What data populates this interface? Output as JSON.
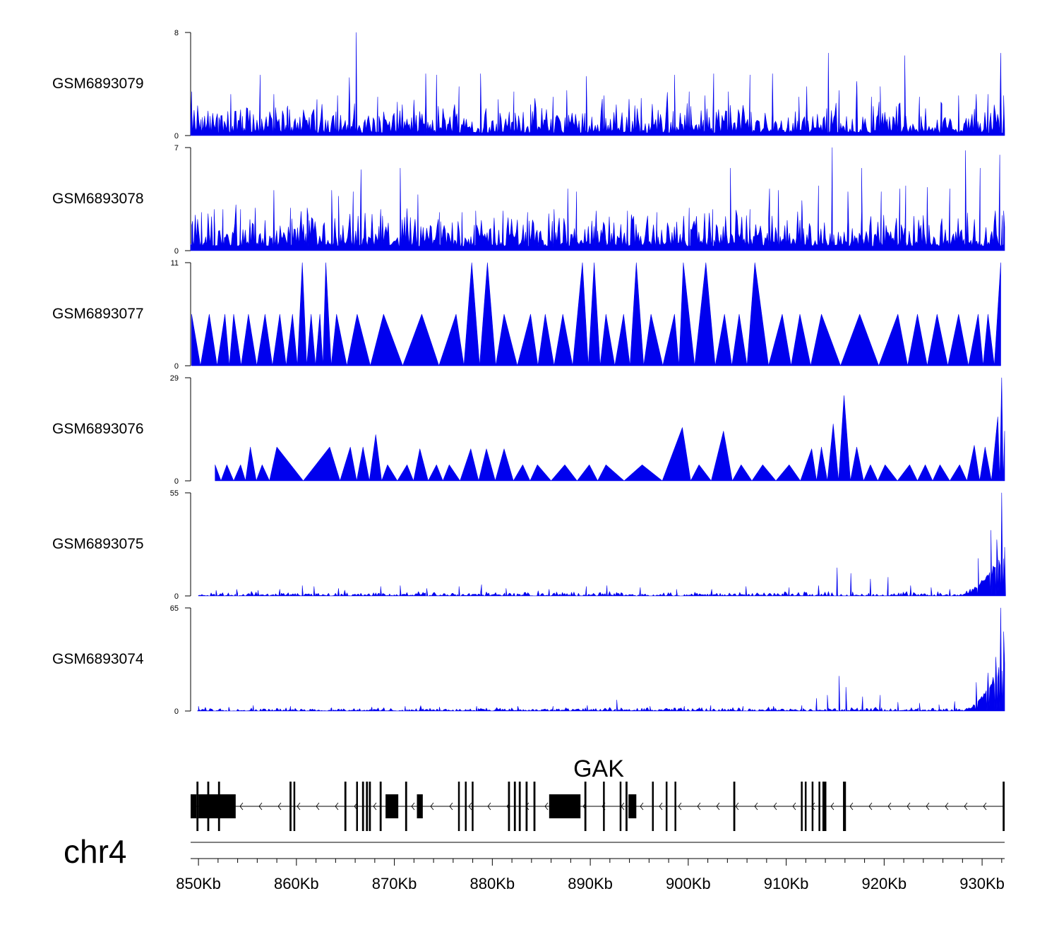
{
  "chart_data": {
    "type": "area",
    "title": "",
    "chromosome": "chr4",
    "xlabel": "",
    "xlim_kb": [
      849.2,
      932.3
    ],
    "x_ticks_kb": [
      850,
      860,
      870,
      880,
      890,
      900,
      910,
      920,
      930
    ],
    "x_tick_labels": [
      "850Kb",
      "860Kb",
      "870Kb",
      "880Kb",
      "890Kb",
      "900Kb",
      "910Kb",
      "920Kb",
      "930Kb"
    ],
    "fill_color": "#0000ee",
    "series": [
      {
        "name": "GSM6893079",
        "ymax": 8,
        "y_tick_labels": [
          "0",
          "8"
        ],
        "style": "dense",
        "baseline": 0.2,
        "noise_max": 1.8,
        "peaks": [
          [
            849.3,
            3.4
          ],
          [
            850.4,
            1.4
          ],
          [
            851.2,
            1.5
          ],
          [
            852.1,
            1.4
          ],
          [
            853.3,
            3.2
          ],
          [
            854.5,
            1.5
          ],
          [
            856.3,
            4.7
          ],
          [
            857.7,
            3.2
          ],
          [
            859.1,
            2.3
          ],
          [
            862.1,
            2.8
          ],
          [
            864.2,
            3.1
          ],
          [
            865.4,
            4.5
          ],
          [
            866.1,
            8.0
          ],
          [
            868.3,
            3.0
          ],
          [
            870.3,
            2.6
          ],
          [
            873.2,
            4.8
          ],
          [
            874.3,
            4.7
          ],
          [
            876.6,
            3.8
          ],
          [
            878.8,
            4.8
          ],
          [
            880.6,
            2.8
          ],
          [
            882.2,
            3.4
          ],
          [
            883.9,
            2.4
          ],
          [
            886.2,
            3.0
          ],
          [
            887.6,
            3.5
          ],
          [
            889.6,
            4.6
          ],
          [
            891.4,
            3.1
          ],
          [
            895.2,
            2.9
          ],
          [
            898.6,
            4.7
          ],
          [
            900.1,
            3.4
          ],
          [
            901.7,
            3.1
          ],
          [
            902.6,
            4.8
          ],
          [
            904.1,
            3.4
          ],
          [
            906.3,
            4.7
          ],
          [
            908.6,
            4.8
          ],
          [
            911.3,
            3.0
          ],
          [
            912.1,
            3.8
          ],
          [
            914.3,
            6.4
          ],
          [
            915.4,
            3.5
          ],
          [
            917.2,
            4.2
          ],
          [
            918.7,
            3.0
          ],
          [
            919.6,
            3.8
          ],
          [
            922.1,
            6.2
          ],
          [
            923.6,
            3.0
          ],
          [
            925.8,
            2.6
          ],
          [
            927.6,
            3.1
          ],
          [
            929.4,
            3.2
          ],
          [
            930.6,
            3.2
          ],
          [
            931.9,
            6.4
          ],
          [
            932.2,
            3.1
          ]
        ]
      },
      {
        "name": "GSM6893078",
        "ymax": 7,
        "y_tick_labels": [
          "0",
          "7"
        ],
        "style": "dense",
        "baseline": 0.3,
        "noise_max": 1.6,
        "peaks": [
          [
            849.4,
            2.0
          ],
          [
            850.3,
            2.6
          ],
          [
            851.6,
            2.8
          ],
          [
            852.5,
            2.8
          ],
          [
            854.3,
            2.8
          ],
          [
            855.8,
            2.9
          ],
          [
            857.7,
            4.1
          ],
          [
            859.4,
            2.9
          ],
          [
            861.1,
            2.9
          ],
          [
            863.6,
            4.1
          ],
          [
            864.3,
            3.7
          ],
          [
            865.8,
            4.0
          ],
          [
            866.6,
            5.5
          ],
          [
            868.6,
            2.8
          ],
          [
            870.6,
            5.6
          ],
          [
            872.4,
            3.8
          ],
          [
            874.6,
            2.6
          ],
          [
            876.9,
            2.6
          ],
          [
            878.3,
            2.7
          ],
          [
            881.1,
            2.7
          ],
          [
            883.6,
            2.6
          ],
          [
            886.3,
            2.8
          ],
          [
            887.7,
            4.2
          ],
          [
            888.6,
            4.0
          ],
          [
            890.6,
            2.7
          ],
          [
            893.8,
            2.7
          ],
          [
            896.8,
            2.6
          ],
          [
            900.1,
            2.9
          ],
          [
            902.5,
            2.8
          ],
          [
            904.3,
            5.6
          ],
          [
            906.3,
            2.8
          ],
          [
            908.3,
            4.2
          ],
          [
            909.2,
            4.1
          ],
          [
            911.6,
            3.4
          ],
          [
            913.3,
            4.4
          ],
          [
            914.7,
            7.0
          ],
          [
            916.3,
            4.0
          ],
          [
            917.7,
            5.6
          ],
          [
            919.7,
            4.0
          ],
          [
            921.6,
            4.2
          ],
          [
            922.2,
            4.4
          ],
          [
            924.4,
            4.3
          ],
          [
            926.7,
            4.2
          ],
          [
            928.3,
            6.8
          ],
          [
            929.8,
            5.6
          ],
          [
            931.8,
            6.5
          ],
          [
            932.2,
            2.7
          ]
        ]
      },
      {
        "name": "GSM6893077",
        "ymax": 11,
        "y_tick_labels": [
          "0",
          "11"
        ],
        "style": "sparse",
        "baseline": 0,
        "noise_max": 0,
        "peaks": [
          [
            849.3,
            5.5
          ],
          [
            851.1,
            5.5
          ],
          [
            852.7,
            5.5
          ],
          [
            853.6,
            5.5
          ],
          [
            855.1,
            5.5
          ],
          [
            856.8,
            5.5
          ],
          [
            858.3,
            5.5
          ],
          [
            859.6,
            5.5
          ],
          [
            860.6,
            11.0
          ],
          [
            861.5,
            5.5
          ],
          [
            862.4,
            5.5
          ],
          [
            863.0,
            11.0
          ],
          [
            864.1,
            5.5
          ],
          [
            866.2,
            5.5
          ],
          [
            868.9,
            5.5
          ],
          [
            872.8,
            5.5
          ],
          [
            876.3,
            5.5
          ],
          [
            877.9,
            11.0
          ],
          [
            879.5,
            11.0
          ],
          [
            881.2,
            5.5
          ],
          [
            883.9,
            5.5
          ],
          [
            885.4,
            5.5
          ],
          [
            887.2,
            5.5
          ],
          [
            889.2,
            11.0
          ],
          [
            890.4,
            11.0
          ],
          [
            891.6,
            5.5
          ],
          [
            893.4,
            5.5
          ],
          [
            894.7,
            11.0
          ],
          [
            896.2,
            5.5
          ],
          [
            898.6,
            5.5
          ],
          [
            899.5,
            11.0
          ],
          [
            901.8,
            11.0
          ],
          [
            903.7,
            5.5
          ],
          [
            905.2,
            5.5
          ],
          [
            906.8,
            11.0
          ],
          [
            909.6,
            5.5
          ],
          [
            911.4,
            5.5
          ],
          [
            913.6,
            5.5
          ],
          [
            917.5,
            5.5
          ],
          [
            921.4,
            5.5
          ],
          [
            923.4,
            5.5
          ],
          [
            925.4,
            5.5
          ],
          [
            927.6,
            5.5
          ],
          [
            929.6,
            5.5
          ],
          [
            930.6,
            5.5
          ],
          [
            931.9,
            11.0
          ]
        ]
      },
      {
        "name": "GSM6893076",
        "ymax": 29,
        "y_tick_labels": [
          "0",
          "29"
        ],
        "style": "sparse",
        "baseline": 0,
        "noise_max": 0,
        "peaks": [
          [
            851.7,
            4.5
          ],
          [
            852.9,
            4.5
          ],
          [
            854.3,
            4.5
          ],
          [
            855.3,
            9.5
          ],
          [
            856.5,
            4.5
          ],
          [
            858.0,
            9.5
          ],
          [
            863.4,
            9.5
          ],
          [
            865.5,
            9.5
          ],
          [
            866.8,
            9.5
          ],
          [
            868.1,
            13.0
          ],
          [
            869.3,
            4.5
          ],
          [
            871.3,
            4.5
          ],
          [
            872.6,
            9.0
          ],
          [
            874.3,
            4.5
          ],
          [
            875.6,
            4.5
          ],
          [
            877.8,
            9.0
          ],
          [
            879.4,
            9.0
          ],
          [
            881.2,
            9.0
          ],
          [
            883.1,
            4.5
          ],
          [
            884.6,
            4.5
          ],
          [
            887.4,
            4.5
          ],
          [
            889.9,
            4.5
          ],
          [
            891.6,
            4.5
          ],
          [
            895.3,
            4.5
          ],
          [
            899.4,
            15.0
          ],
          [
            901.1,
            4.5
          ],
          [
            903.6,
            14.0
          ],
          [
            905.4,
            4.5
          ],
          [
            907.6,
            4.5
          ],
          [
            910.3,
            4.5
          ],
          [
            912.6,
            9.0
          ],
          [
            913.6,
            9.5
          ],
          [
            914.8,
            16.0
          ],
          [
            915.9,
            24.0
          ],
          [
            917.2,
            9.5
          ],
          [
            918.6,
            4.5
          ],
          [
            920.1,
            4.5
          ],
          [
            922.6,
            4.5
          ],
          [
            924.2,
            4.5
          ],
          [
            925.7,
            4.5
          ],
          [
            927.7,
            4.5
          ],
          [
            929.2,
            10.0
          ],
          [
            930.3,
            9.5
          ],
          [
            931.6,
            18.0
          ],
          [
            932.0,
            29.0
          ],
          [
            932.3,
            14.0
          ]
        ]
      },
      {
        "name": "GSM6893075",
        "ymax": 55,
        "y_tick_labels": [
          "0",
          "55"
        ],
        "style": "low",
        "baseline": 0,
        "noise_max": 1.5,
        "ramp_start_kb": 927.5,
        "ramp_end_value": 28,
        "peaks": [
          [
            851.8,
            3.0
          ],
          [
            853.9,
            3.5
          ],
          [
            856.1,
            3.0
          ],
          [
            858.3,
            3.5
          ],
          [
            860.6,
            5.5
          ],
          [
            861.8,
            5.0
          ],
          [
            864.3,
            4.0
          ],
          [
            868.6,
            5.0
          ],
          [
            870.6,
            5.5
          ],
          [
            873.3,
            4.0
          ],
          [
            876.6,
            5.0
          ],
          [
            878.9,
            6.0
          ],
          [
            881.4,
            4.0
          ],
          [
            885.8,
            3.5
          ],
          [
            889.6,
            5.0
          ],
          [
            891.7,
            5.5
          ],
          [
            895.1,
            4.5
          ],
          [
            898.8,
            3.5
          ],
          [
            902.4,
            3.5
          ],
          [
            905.9,
            5.0
          ],
          [
            910.3,
            4.5
          ],
          [
            913.3,
            5.5
          ],
          [
            915.2,
            15.0
          ],
          [
            916.6,
            12.0
          ],
          [
            918.6,
            9.0
          ],
          [
            920.4,
            10.0
          ],
          [
            922.7,
            5.5
          ],
          [
            924.8,
            4.5
          ],
          [
            926.7,
            3.5
          ],
          [
            929.6,
            20.0
          ],
          [
            930.9,
            35.0
          ],
          [
            931.5,
            30.0
          ],
          [
            932.0,
            55.0
          ],
          [
            932.3,
            26.0
          ]
        ]
      },
      {
        "name": "GSM6893074",
        "ymax": 65,
        "y_tick_labels": [
          "0",
          "65"
        ],
        "style": "low",
        "baseline": 0,
        "noise_max": 1.5,
        "ramp_start_kb": 927.8,
        "ramp_end_value": 40,
        "peaks": [
          [
            850.0,
            3.0
          ],
          [
            853.1,
            2.5
          ],
          [
            855.6,
            3.5
          ],
          [
            859.4,
            3.0
          ],
          [
            863.6,
            2.0
          ],
          [
            867.7,
            2.5
          ],
          [
            871.1,
            3.0
          ],
          [
            874.6,
            2.5
          ],
          [
            878.4,
            3.0
          ],
          [
            882.6,
            3.0
          ],
          [
            886.2,
            3.0
          ],
          [
            889.7,
            3.5
          ],
          [
            892.7,
            7.0
          ],
          [
            896.1,
            3.0
          ],
          [
            899.6,
            3.0
          ],
          [
            902.3,
            3.5
          ],
          [
            905.6,
            3.0
          ],
          [
            908.7,
            3.0
          ],
          [
            911.6,
            3.5
          ],
          [
            913.1,
            8.0
          ],
          [
            914.2,
            10.0
          ],
          [
            915.4,
            22.0
          ],
          [
            916.1,
            15.0
          ],
          [
            917.8,
            9.0
          ],
          [
            919.6,
            10.0
          ],
          [
            921.4,
            5.5
          ],
          [
            923.6,
            5.0
          ],
          [
            925.6,
            4.0
          ],
          [
            927.2,
            6.0
          ],
          [
            929.4,
            18.0
          ],
          [
            930.6,
            24.0
          ],
          [
            931.4,
            34.0
          ],
          [
            931.9,
            65.0
          ],
          [
            932.2,
            50.0
          ]
        ]
      }
    ],
    "gene_track": {
      "gene_name": "GAK",
      "strand": "-",
      "start_kb": 849.2,
      "end_kb": 932.3,
      "thick_exons_kb": [
        [
          849.2,
          849.8
        ],
        [
          850.0,
          853.8
        ],
        [
          869.1,
          870.4
        ],
        [
          872.3,
          872.9
        ],
        [
          885.8,
          889.0
        ],
        [
          893.9,
          894.7
        ]
      ],
      "thin_exons_kb": [
        [
          849.8,
          850.0
        ],
        [
          850.9,
          851.1
        ],
        [
          852.0,
          852.2
        ],
        [
          859.3,
          859.5
        ],
        [
          859.7,
          859.8
        ],
        [
          864.9,
          865.1
        ],
        [
          866.1,
          866.2
        ],
        [
          866.7,
          866.9
        ],
        [
          867.1,
          867.3
        ],
        [
          867.4,
          867.6
        ],
        [
          868.5,
          868.7
        ],
        [
          871.1,
          871.3
        ],
        [
          876.5,
          876.6
        ],
        [
          877.2,
          877.3
        ],
        [
          877.9,
          878.0
        ],
        [
          881.6,
          881.8
        ],
        [
          882.2,
          882.4
        ],
        [
          882.7,
          882.9
        ],
        [
          883.4,
          883.6
        ],
        [
          884.2,
          884.4
        ],
        [
          889.4,
          889.6
        ],
        [
          891.3,
          891.4
        ],
        [
          893.0,
          893.1
        ],
        [
          893.6,
          893.8
        ],
        [
          896.3,
          896.4
        ],
        [
          897.7,
          897.8
        ],
        [
          898.6,
          898.7
        ],
        [
          904.6,
          904.8
        ],
        [
          911.5,
          911.6
        ],
        [
          911.9,
          912.0
        ],
        [
          912.6,
          912.7
        ],
        [
          913.3,
          913.4
        ],
        [
          913.7,
          914.1
        ],
        [
          915.8,
          916.1
        ],
        [
          932.1,
          932.3
        ]
      ]
    }
  }
}
